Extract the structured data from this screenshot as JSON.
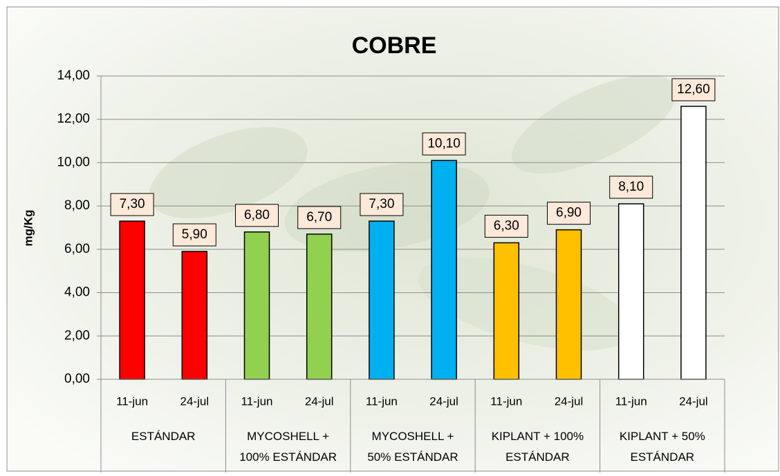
{
  "chart_data": {
    "type": "bar",
    "title": "COBRE",
    "y_label": "mg/Kg",
    "groups": [
      {
        "name": "ESTÁNDAR",
        "color": "#ff0000",
        "categories": [
          "11-jun",
          "24-jul"
        ],
        "values": [
          7.3,
          5.9
        ],
        "value_labels": [
          "7,30",
          "5,90"
        ]
      },
      {
        "name": "MYCOSHELL +\n100% ESTÁNDAR",
        "color": "#92d050",
        "categories": [
          "11-jun",
          "24-jul"
        ],
        "values": [
          6.8,
          6.7
        ],
        "value_labels": [
          "6,80",
          "6,70"
        ]
      },
      {
        "name": "MYCOSHELL +\n50% ESTÁNDAR",
        "color": "#00b0f0",
        "categories": [
          "11-jun",
          "24-jul"
        ],
        "values": [
          7.3,
          10.1
        ],
        "value_labels": [
          "7,30",
          "10,10"
        ]
      },
      {
        "name": "KIPLANT + 100%\nESTÁNDAR",
        "color": "#ffc000",
        "categories": [
          "11-jun",
          "24-jul"
        ],
        "values": [
          6.3,
          6.9
        ],
        "value_labels": [
          "6,30",
          "6,90"
        ]
      },
      {
        "name": "KIPLANT + 50%\nESTÁNDAR",
        "color": "#ffffff",
        "categories": [
          "11-jun",
          "24-jul"
        ],
        "values": [
          8.1,
          12.6
        ],
        "value_labels": [
          "8,10",
          "12,60"
        ]
      }
    ],
    "ylim": [
      0,
      14
    ],
    "yticks": [
      {
        "value": 0,
        "label": "0,00"
      },
      {
        "value": 2,
        "label": "2,00"
      },
      {
        "value": 4,
        "label": "4,00"
      },
      {
        "value": 6,
        "label": "6,00"
      },
      {
        "value": 8,
        "label": "8,00"
      },
      {
        "value": 10,
        "label": "10,00"
      },
      {
        "value": 12,
        "label": "12,00"
      },
      {
        "value": 14,
        "label": "14,00"
      }
    ],
    "grid": true
  }
}
